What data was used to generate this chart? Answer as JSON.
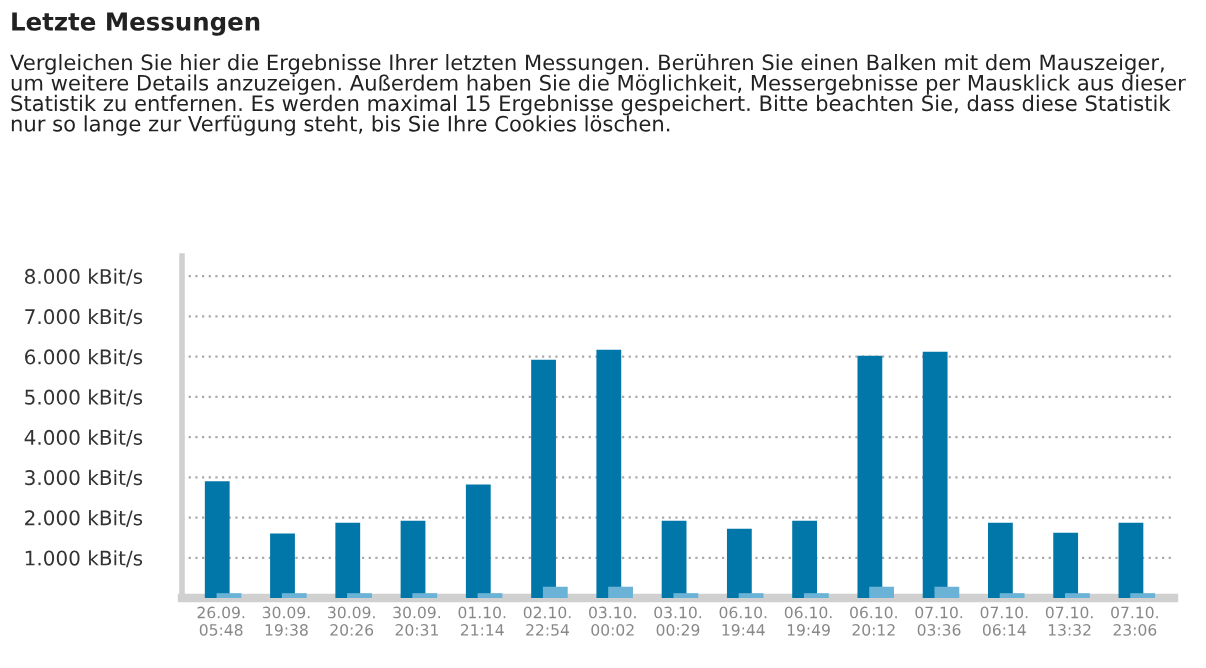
{
  "chart_data": {
    "type": "bar",
    "title": "Letzte Messungen",
    "subtitle": "Vergleichen Sie hier die Ergebnisse Ihrer letzten Messungen. Berühren Sie einen Balken mit dem Mauszeiger, um weitere Details anzuzeigen. Außerdem haben Sie die Möglichkeit, Messergebnisse per Mausklick aus dieser Statistik zu entfernen. Es werden maximal 15 Ergebnisse gespeichert. Bitte beachten Sie, dass diese Statistik nur so lange zur Verfügung steht, bis Sie Ihre Cookies löschen.",
    "categories": [
      "26.09.\n05:48",
      "30.09.\n19:38",
      "30.09.\n20:26",
      "30.09.\n20:31",
      "01.10.\n21:14",
      "02.10.\n22:54",
      "03.10.\n00:02",
      "03.10.\n00:29",
      "06.10.\n19:44",
      "06.10.\n19:49",
      "06.10.\n20:12",
      "07.10.\n03:36",
      "07.10.\n06:14",
      "07.10.\n13:32",
      "07.10.\n23:06"
    ],
    "series": [
      {
        "color": "#0077a8",
        "values": [
          2900,
          1600,
          1870,
          1920,
          2820,
          5920,
          6170,
          1920,
          1720,
          1920,
          6020,
          6120,
          1870,
          1620,
          1870
        ]
      },
      {
        "color": "#6bb3d6",
        "values": [
          120,
          120,
          120,
          120,
          120,
          280,
          280,
          120,
          120,
          120,
          280,
          280,
          120,
          120,
          120
        ]
      }
    ],
    "ylim": [
      0,
      8500
    ],
    "yticks": [
      {
        "value": 1000,
        "label": "1.000 kBit/s"
      },
      {
        "value": 2000,
        "label": "2.000 kBit/s"
      },
      {
        "value": 3000,
        "label": "3.000 kBit/s"
      },
      {
        "value": 4000,
        "label": "4.000 kBit/s"
      },
      {
        "value": 5000,
        "label": "5.000 kBit/s"
      },
      {
        "value": 6000,
        "label": "6.000 kBit/s"
      },
      {
        "value": 7000,
        "label": "7.000 kBit/s"
      },
      {
        "value": 8000,
        "label": "8.000 kBit/s"
      }
    ],
    "grid": "y"
  }
}
